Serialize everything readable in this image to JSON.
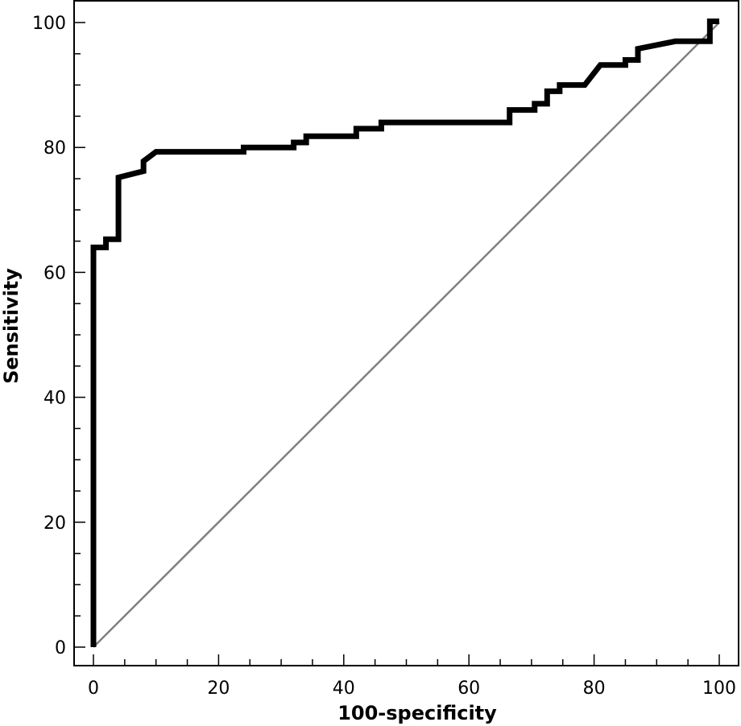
{
  "chart_data": {
    "type": "line",
    "title": "",
    "xlabel": "100-specificity",
    "ylabel": "Sensitivity",
    "xlim": [
      0,
      100
    ],
    "ylim": [
      0,
      100
    ],
    "x_ticks": [
      0,
      20,
      40,
      60,
      80,
      100
    ],
    "y_ticks": [
      0,
      20,
      40,
      60,
      80,
      100
    ],
    "x_minor_step": 5,
    "y_minor_step": 5,
    "grid": false,
    "legend": "none",
    "colors": {
      "roc": "#000000",
      "reference": "#808080"
    },
    "series": [
      {
        "values_x": [
          0,
          0,
          2,
          2,
          4,
          4,
          8,
          8,
          10,
          24,
          24,
          32,
          32,
          34,
          34,
          42,
          42,
          46,
          46,
          66.5,
          66.5,
          70.5,
          70.5,
          72.5,
          72.5,
          74.5,
          74.5,
          78.5,
          81,
          85,
          85,
          87,
          87,
          93,
          98.5,
          98.5,
          100
        ],
        "values_y": [
          0,
          64,
          64,
          65.3,
          65.3,
          75.2,
          76.2,
          77.8,
          79.3,
          79.3,
          80,
          80,
          80.8,
          80.8,
          81.8,
          81.8,
          83,
          83,
          84,
          84,
          86,
          86,
          87,
          87,
          89,
          89,
          90,
          90,
          93.2,
          93.2,
          94,
          94,
          95.8,
          97,
          97,
          100.2,
          100.2
        ]
      },
      {
        "values_x": [
          0,
          100
        ],
        "values_y": [
          0,
          100
        ]
      }
    ]
  }
}
